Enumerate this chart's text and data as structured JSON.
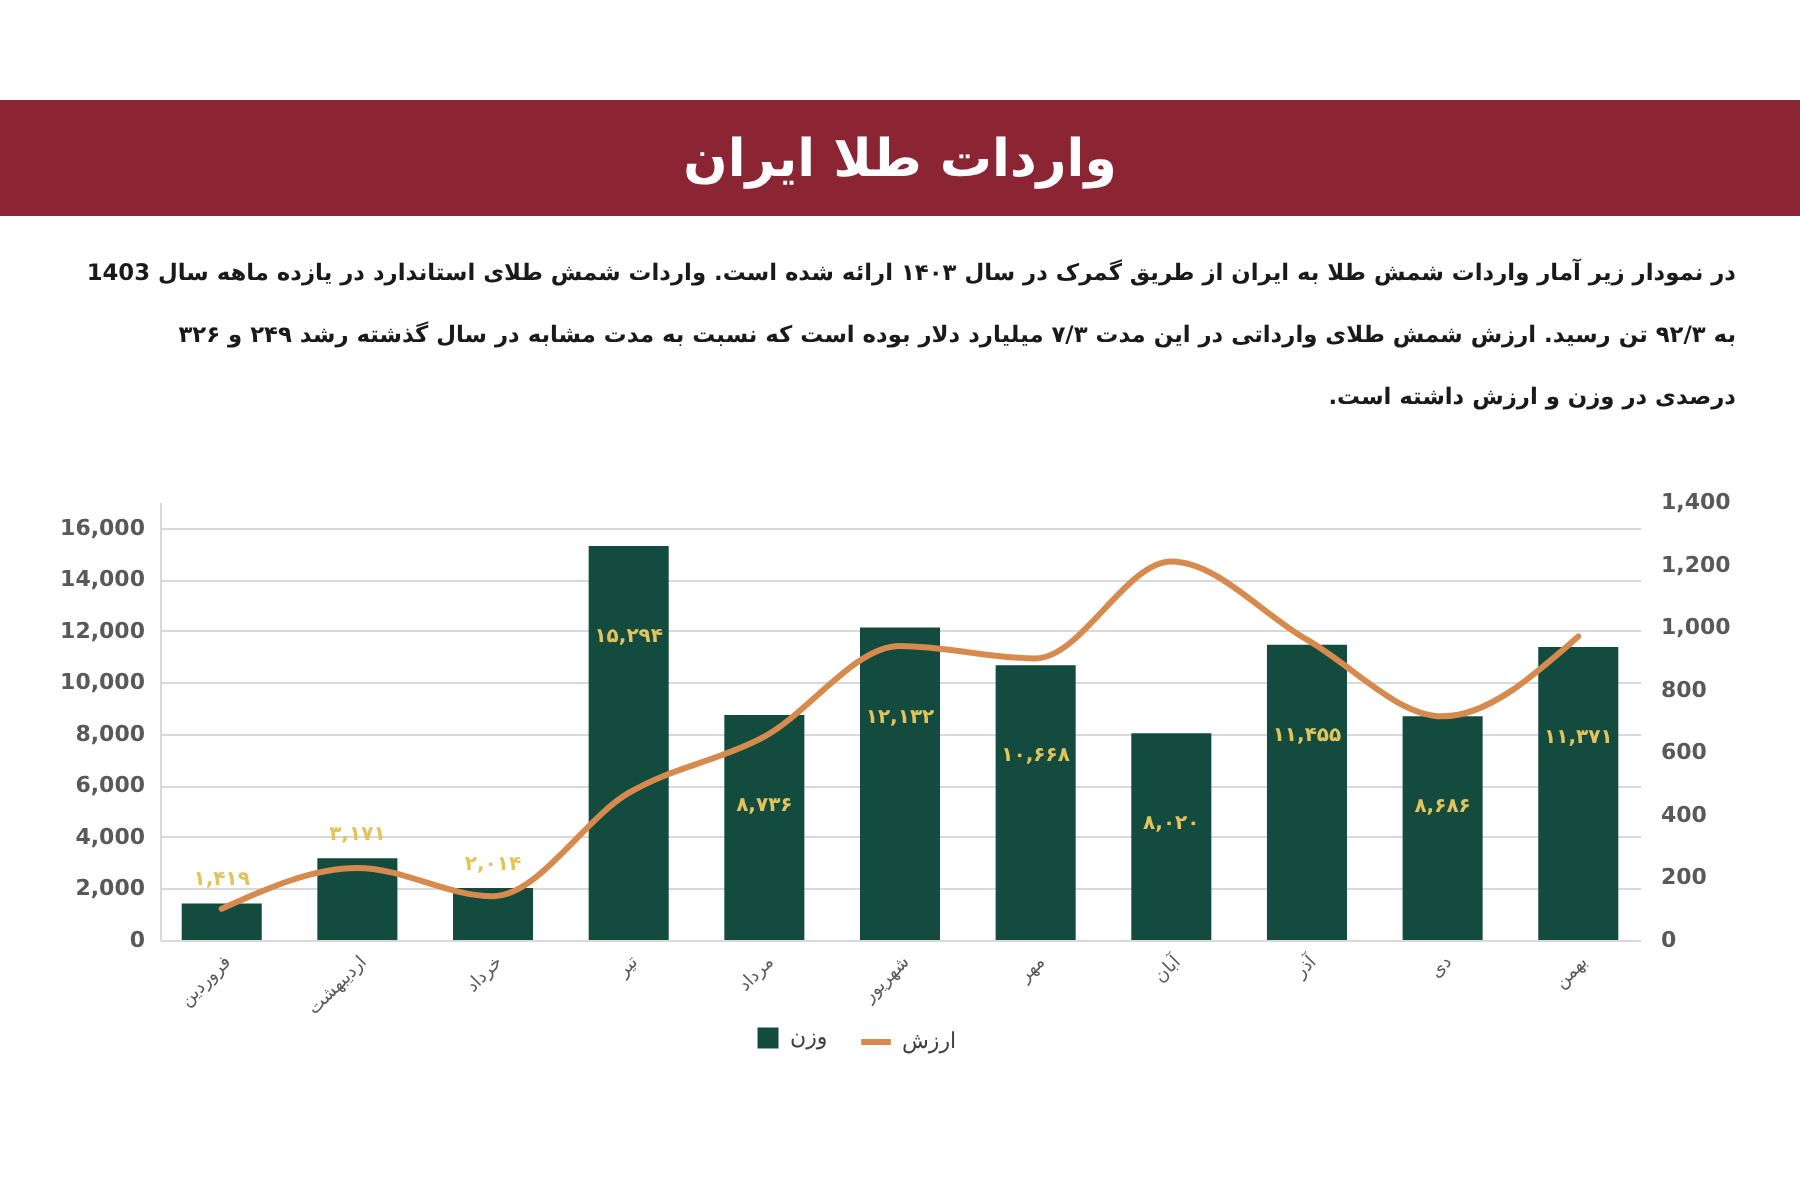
{
  "chart_data": {
    "type": "bar",
    "title": "واردات طلا ایران",
    "subtitle": [
      "در نمودار زیر آمار واردات شمش طلا به ایران از طریق گمرک در سال ۱۴۰۳ ارائه شده است.  واردات شمش طلای استاندارد در یازده ماهه سال 1403",
      "به ۹۲/۳ تن رسید. ارزش شمش طلای وارداتی در این مدت ۷/۳ میلیارد دلار بوده است که نسبت به مدت مشابه در سال گذشته رشد ۲۴۹ و ۳۲۶",
      "درصدی در وزن و ارزش داشته است."
    ],
    "categories": [
      "فروردین",
      "اردیبهشت",
      "خرداد",
      "تیر",
      "مرداد",
      "شهریور",
      "مهر",
      "آبان",
      "آذر",
      "دی",
      "بهمن"
    ],
    "series": [
      {
        "name": "وزن",
        "color": "#134b3f",
        "values": [
          1419,
          3171,
          2014,
          15294,
          8736,
          12132,
          10668,
          8020,
          11455,
          8686,
          11371
        ],
        "value_labels": [
          "۱,۴۱۹",
          "۳,۱۷۱",
          "۲,۰۱۴",
          "۱۵,۲۹۴",
          "۸,۷۳۶",
          "۱۲,۱۳۲",
          "۱۰,۶۶۸",
          "۸,۰۲۰",
          "۱۱,۴۵۵",
          "۸,۶۸۶",
          "۱۱,۳۷۱"
        ]
      },
      {
        "name": "ارزش",
        "type": "line",
        "axis": "y2",
        "color": "#d68a4e",
        "values": [
          100,
          230,
          140,
          470,
          650,
          940,
          900,
          1210,
          960,
          715,
          970
        ]
      }
    ],
    "ylim": [
      0,
      17000
    ],
    "yticks": [
      0,
      {
        "value": 2000,
        "label": "2,000"
      },
      {
        "value": 4000,
        "label": "4,000"
      },
      {
        "value": 6000,
        "label": "6,000"
      },
      {
        "value": 8000,
        "label": "8,000"
      },
      {
        "value": 10000,
        "label": "10,000"
      },
      {
        "value": 12000,
        "label": "12,000"
      },
      {
        "value": 14000,
        "label": "14,000"
      },
      {
        "value": 16000,
        "label": "16,000"
      }
    ],
    "y2lim": [
      0,
      1400
    ],
    "y2ticks": [
      0,
      200,
      400,
      600,
      800,
      {
        "value": 1000,
        "label": "1,000"
      },
      {
        "value": 1200,
        "label": "1,200"
      },
      {
        "value": 1400,
        "label": "1,400"
      }
    ],
    "grid": "y",
    "legend": "bottom"
  }
}
